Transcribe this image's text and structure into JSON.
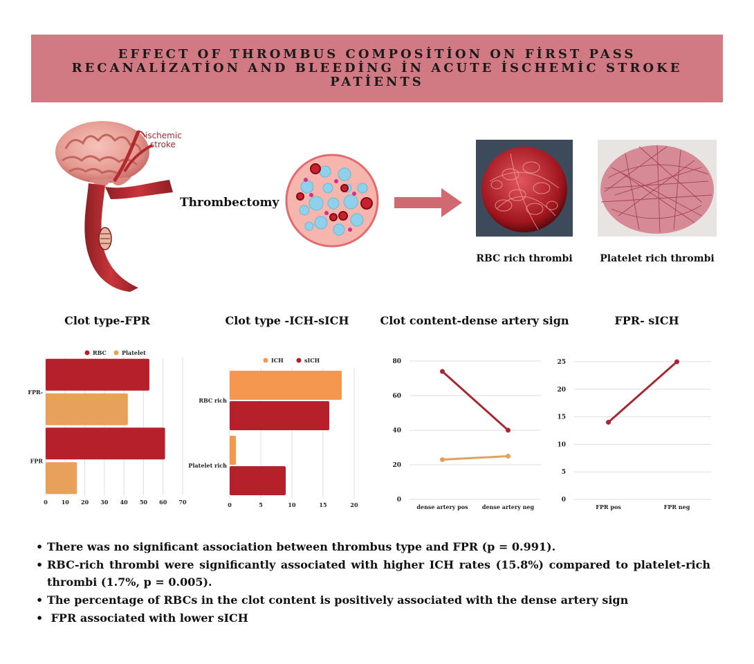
{
  "banner": {
    "line1": "EFFECT OF THROMBUS COMPOSİTİON ON FİRST PASS",
    "line2": "RECANALİZATİON AND BLEEDİNG İN ACUTE İSCHEMİC STROKE",
    "line3": "PATİENTS"
  },
  "illustration": {
    "brain_label_1": "ischemic",
    "brain_label_2": "stroke",
    "thrombectomy_label": "Thrombectomy",
    "rbc_caption": "RBC rich thrombi",
    "platelet_caption": "Platelet rich thrombi"
  },
  "chart_titles": {
    "c1": "Clot type-FPR",
    "c2": "Clot type -ICH-sICH",
    "c3": "Clot content-dense artery sign",
    "c4": "FPR- sICH"
  },
  "colors": {
    "rbc_dark": "#b5202a",
    "platelet_orange": "#e7a15a",
    "ich_orange": "#f5974e",
    "line_dark": "#a62832",
    "line_light": "#e0a25c",
    "banner": "#d27a84"
  },
  "chart_data": [
    {
      "type": "bar",
      "orientation": "horizontal",
      "categories": [
        "FPR-",
        "FPR"
      ],
      "series": [
        {
          "name": "RBC",
          "values": [
            53,
            61
          ]
        },
        {
          "name": "Platelet",
          "values": [
            42,
            16
          ]
        }
      ],
      "xlim": [
        0,
        70
      ],
      "xticks": [
        "0",
        "10",
        "20",
        "30",
        "40",
        "50",
        "60",
        "70"
      ],
      "legend": "top",
      "grid": true
    },
    {
      "type": "bar",
      "orientation": "horizontal",
      "categories": [
        "RBC rich",
        "Platelet rich"
      ],
      "series": [
        {
          "name": "ICH",
          "values": [
            18,
            1
          ]
        },
        {
          "name": "sICH",
          "values": [
            16,
            9
          ]
        }
      ],
      "xlim": [
        0,
        20
      ],
      "xticks": [
        "0",
        "5",
        "10",
        "15",
        "20"
      ],
      "legend": "top",
      "grid": true
    },
    {
      "type": "line",
      "categories": [
        "dense artery pos",
        "dense artery neg"
      ],
      "series": [
        {
          "values": [
            74,
            40
          ]
        },
        {
          "values": [
            23,
            25
          ]
        }
      ],
      "ylim": [
        0,
        80
      ],
      "yticks": [
        "0",
        "20",
        "40",
        "60",
        "80"
      ],
      "grid": true
    },
    {
      "type": "line",
      "categories": [
        "FPR pos",
        "FPR neg"
      ],
      "series": [
        {
          "values": [
            14,
            25
          ]
        }
      ],
      "ylim": [
        0,
        25
      ],
      "yticks": [
        "0",
        "5",
        "10",
        "15",
        "20",
        "25"
      ],
      "grid": true
    }
  ],
  "bullets": [
    "There was no significant association between thrombus type and FPR (p = 0.991).",
    "RBC-rich thrombi were significantly associated with higher ICH rates (15.8%) compared to platelet-rich thrombi (1.7%, p = 0.005).",
    "The percentage of RBCs in the clot content is positively associated with the dense artery sign",
    " FPR associated with lower sICH"
  ],
  "bullet_char": "•"
}
